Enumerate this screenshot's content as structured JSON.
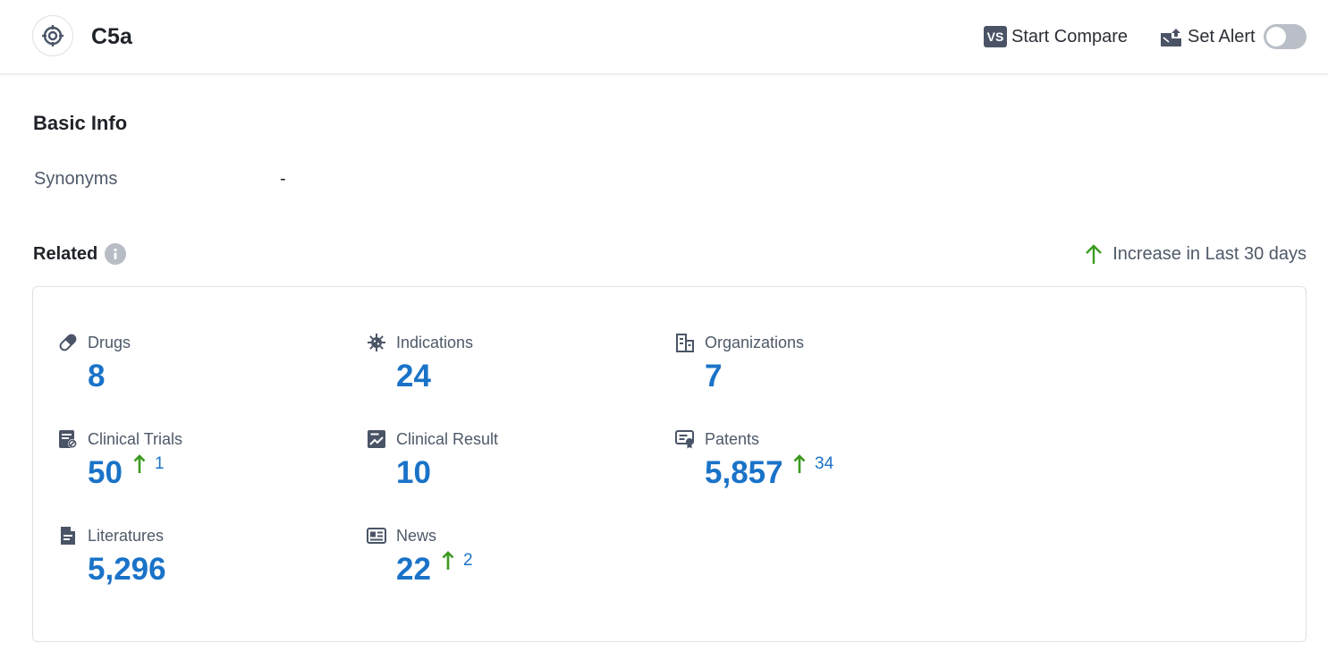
{
  "header": {
    "title": "C5a",
    "compare_label": "Start Compare",
    "compare_icon_text": "VS",
    "alert_label": "Set Alert",
    "alert_enabled": false
  },
  "basic_info": {
    "title": "Basic Info",
    "synonyms_label": "Synonyms",
    "synonyms_value": "-"
  },
  "related": {
    "title": "Related",
    "legend_label": "Increase in Last 30 days",
    "colors": {
      "number": "#1a73c8",
      "increase_arrow": "#3a9a1f"
    },
    "stats": [
      {
        "label": "Drugs",
        "icon": "pill-icon",
        "value": "8",
        "increase": null
      },
      {
        "label": "Indications",
        "icon": "virus-icon",
        "value": "24",
        "increase": null
      },
      {
        "label": "Organizations",
        "icon": "building-icon",
        "value": "7",
        "increase": null
      },
      {
        "label": "Clinical Trials",
        "icon": "clinical-trials-icon",
        "value": "50",
        "increase": "1"
      },
      {
        "label": "Clinical Result",
        "icon": "chart-doc-icon",
        "value": "10",
        "increase": null
      },
      {
        "label": "Patents",
        "icon": "certificate-icon",
        "value": "5,857",
        "increase": "34"
      },
      {
        "label": "Literatures",
        "icon": "document-icon",
        "value": "5,296",
        "increase": null
      },
      {
        "label": "News",
        "icon": "newspaper-icon",
        "value": "22",
        "increase": "2"
      }
    ]
  }
}
